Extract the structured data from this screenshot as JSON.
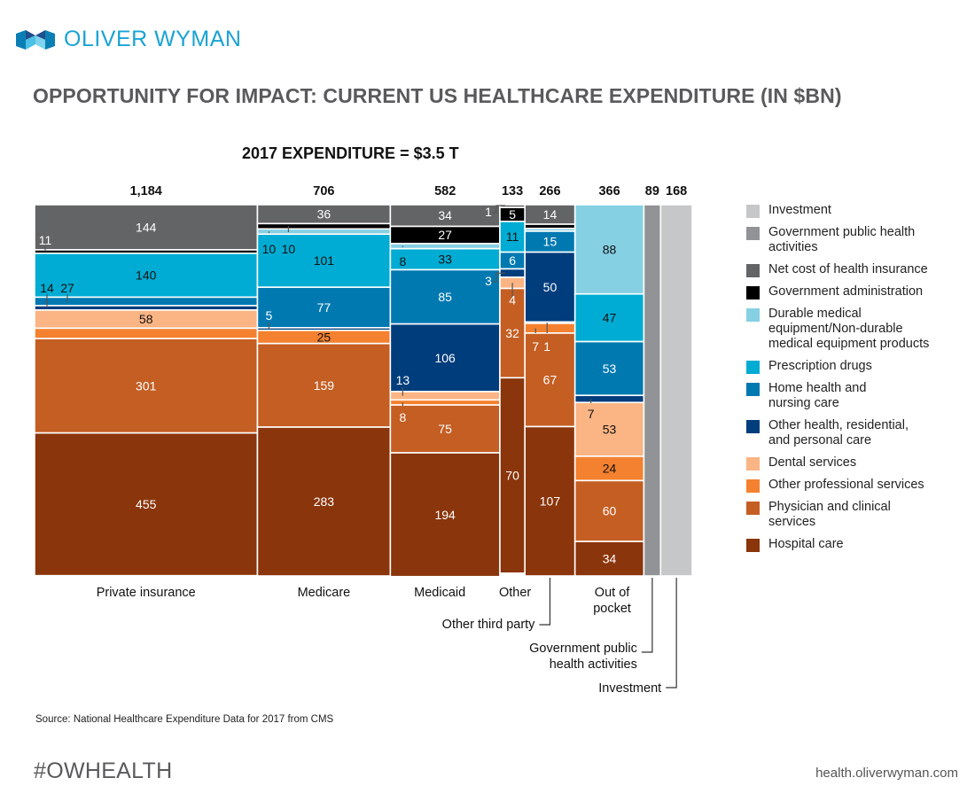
{
  "header": {
    "brand": "OLIVER WYMAN",
    "title": "OPPORTUNITY FOR IMPACT: CURRENT US HEALTHCARE EXPENDITURE (IN $BN)"
  },
  "footer": {
    "source": "Source: National Healthcare Expenditure Data for 2017 from CMS",
    "hashtag": "#OWHEALTH",
    "site": "health.oliverwyman.com"
  },
  "colors": {
    "brand": "#1aa3d4",
    "Investment": "#c6c7c9",
    "Government public health activities": "#929396",
    "Net cost of health insurance": "#636466",
    "Government administration": "#000000",
    "Durable medical equipment/Non-durable medical equipment products": "#86d0e3",
    "Prescription drugs": "#00acd3",
    "Home health and nursing care": "#0079b1",
    "Other health, residential, and personal care": "#003d7c",
    "Dental services": "#fbb484",
    "Other professional services": "#f4812f",
    "Physician and clinical services": "#c45e23",
    "Hospital care": "#8a350b"
  },
  "chart_data": {
    "type": "mekko",
    "title": "2017 EXPENDITURE = $3.5 T",
    "units": "$BN",
    "legend_position": "right",
    "legend": [
      "Investment",
      "Government public health activities",
      "Net cost of health insurance",
      "Government administration",
      "Durable medical equipment/Non-durable medical equipment products",
      "Prescription drugs",
      "Home health and nursing care",
      "Other health, residential, and personal care",
      "Dental services",
      "Other professional services",
      "Physician and clinical services",
      "Hospital care"
    ],
    "columns": [
      {
        "name": "Private insurance",
        "total": 1184,
        "total_label": "1,184",
        "segments": [
          {
            "category": "Net cost of health insurance",
            "value": 144
          },
          {
            "category": "Government administration",
            "value": 11
          },
          {
            "category": "Prescription drugs",
            "value": 140
          },
          {
            "category": "Home health and nursing care",
            "value": 27
          },
          {
            "category": "Other health, residential, and personal care",
            "value": 14
          },
          {
            "category": "Dental services",
            "value": 58
          },
          {
            "category": "Other professional services",
            "value": 33
          },
          {
            "category": "Physician and clinical services",
            "value": 301
          },
          {
            "category": "Hospital care",
            "value": 455
          }
        ]
      },
      {
        "name": "Medicare",
        "total": 706,
        "total_label": "706",
        "segments": [
          {
            "category": "Net cost of health insurance",
            "value": 36
          },
          {
            "category": "Government administration",
            "value": 10
          },
          {
            "category": "Durable medical equipment/Non-durable medical equipment products",
            "value": 10
          },
          {
            "category": "Prescription drugs",
            "value": 101
          },
          {
            "category": "Home health and nursing care",
            "value": 77
          },
          {
            "category": "Other health, residential, and personal care",
            "value": 5
          },
          {
            "category": "Other professional services",
            "value": 25
          },
          {
            "category": "Physician and clinical services",
            "value": 159
          },
          {
            "category": "Hospital care",
            "value": 283
          }
        ]
      },
      {
        "name": "Medicaid",
        "total": 582,
        "total_label": "582",
        "segments": [
          {
            "category": "Net cost of health insurance",
            "value": 34
          },
          {
            "category": "Government administration",
            "value": 27
          },
          {
            "category": "Durable medical equipment/Non-durable medical equipment products",
            "value": 8
          },
          {
            "category": "Prescription drugs",
            "value": 33
          },
          {
            "category": "Home health and nursing care",
            "value": 85
          },
          {
            "category": "Other health, residential, and personal care",
            "value": 106
          },
          {
            "category": "Dental services",
            "value": 13
          },
          {
            "category": "Other professional services",
            "value": 8
          },
          {
            "category": "Physician and clinical services",
            "value": 75
          },
          {
            "category": "Hospital care",
            "value": 194
          }
        ]
      },
      {
        "name": "Other",
        "total": 133,
        "total_label": "133",
        "segments": [
          {
            "category": "Net cost of health insurance",
            "value": 1
          },
          {
            "category": "Government administration",
            "value": 5
          },
          {
            "category": "Prescription drugs",
            "value": 11
          },
          {
            "category": "Home health and nursing care",
            "value": 6
          },
          {
            "category": "Other health, residential, and personal care",
            "value": 3
          },
          {
            "category": "Dental services",
            "value": 4
          },
          {
            "category": "Physician and clinical services",
            "value": 32
          },
          {
            "category": "Hospital care",
            "value": 70
          }
        ]
      },
      {
        "name": "Other third party",
        "total": 266,
        "total_label": "266",
        "segments": [
          {
            "category": "Net cost of health insurance",
            "value": 14
          },
          {
            "category": "Government administration",
            "value": 3
          },
          {
            "category": "Durable medical equipment/Non-durable medical equipment products",
            "value": 2
          },
          {
            "category": "Home health and nursing care",
            "value": 15
          },
          {
            "category": "Other health, residential, and personal care",
            "value": 50
          },
          {
            "category": "Dental services",
            "value": 1
          },
          {
            "category": "Other professional services",
            "value": 7
          },
          {
            "category": "Physician and clinical services",
            "value": 67
          },
          {
            "category": "Hospital care",
            "value": 107
          }
        ]
      },
      {
        "name": "Out of pocket",
        "total": 366,
        "total_label": "366",
        "segments": [
          {
            "category": "Durable medical equipment/Non-durable medical equipment products",
            "value": 88
          },
          {
            "category": "Prescription drugs",
            "value": 47
          },
          {
            "category": "Home health and nursing care",
            "value": 53
          },
          {
            "category": "Other health, residential, and personal care",
            "value": 7
          },
          {
            "category": "Dental services",
            "value": 53
          },
          {
            "category": "Other professional services",
            "value": 24
          },
          {
            "category": "Physician and clinical services",
            "value": 60
          },
          {
            "category": "Hospital care",
            "value": 34
          }
        ]
      },
      {
        "name": "Government public health activities",
        "total": 89,
        "total_label": "89",
        "segments": [
          {
            "category": "Government public health activities",
            "value": 89
          }
        ]
      },
      {
        "name": "Investment",
        "total": 168,
        "total_label": "168",
        "segments": [
          {
            "category": "Investment",
            "value": 168
          }
        ]
      }
    ],
    "column_labels": {
      "Private insurance": "Private insurance",
      "Medicare": "Medicare",
      "Medicaid": "Medicaid",
      "Other": "Other",
      "Other third party": "Other third party",
      "Out of pocket": [
        "Out of",
        "pocket"
      ],
      "Government public health activities": [
        "Government public",
        "health activities"
      ],
      "Investment": "Investment"
    }
  }
}
